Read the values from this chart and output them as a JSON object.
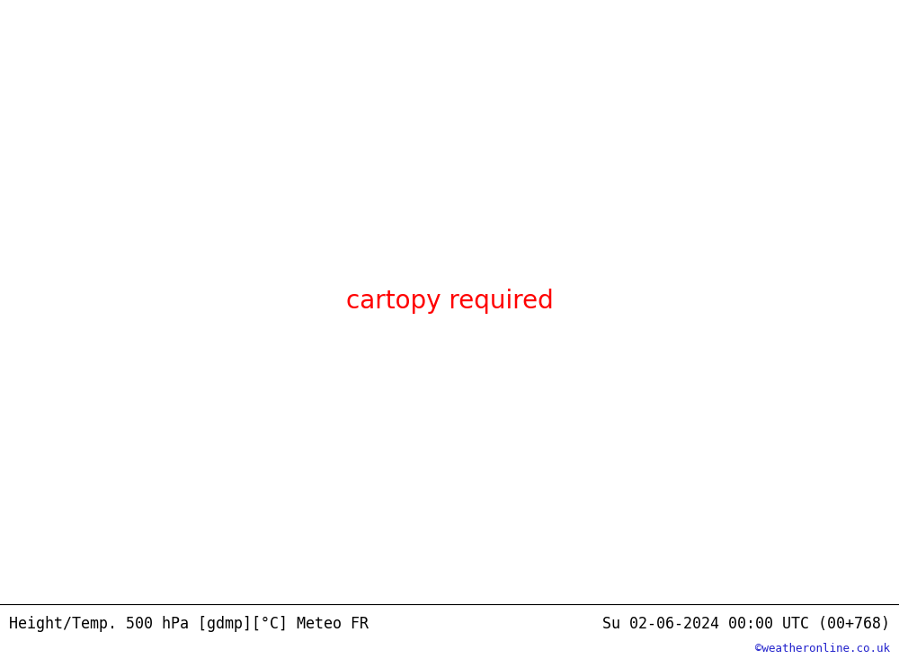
{
  "title_left": "Height/Temp. 500 hPa [gdmp][°C] Meteo FR",
  "title_right": "Su 02-06-2024 00:00 UTC (00+768)",
  "credit": "©weatheronline.co.uk",
  "background_color": "#e0e0e0",
  "green_land_color": "#b8e0a0",
  "gray_land_color": "#b4b4b4",
  "border_color": "#909090",
  "us_state_color": "#7060a0",
  "figsize": [
    10.0,
    7.33
  ],
  "dpi": 100,
  "font_size_title": 12,
  "font_size_credit": 9,
  "font_size_label": 9,
  "contour_black": "#000000",
  "contour_green": "#90c030",
  "contour_orange": "#e07820",
  "contour_red": "#e03010",
  "contour_cyan": "#00b8b8"
}
